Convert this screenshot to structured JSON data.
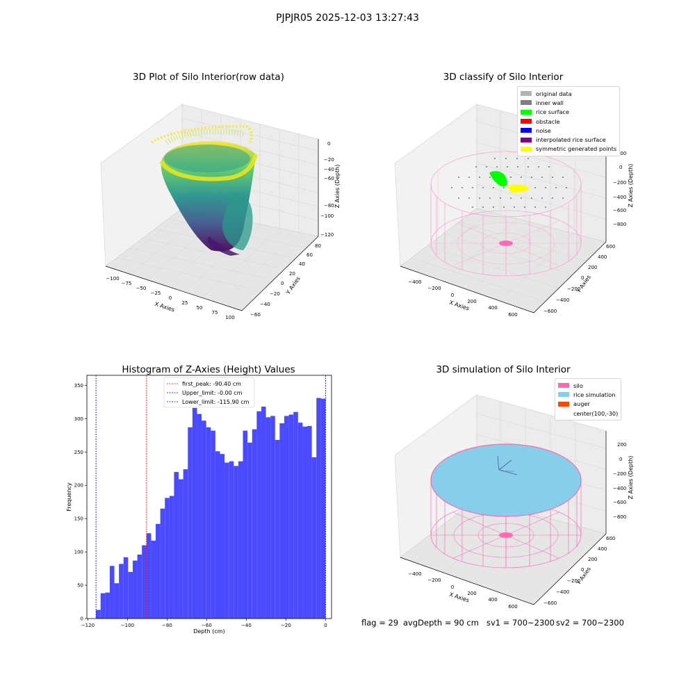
{
  "suptitle": "PJPJR05 2025-12-03 13:27:43",
  "panels": {
    "raw": {
      "title": "3D Plot of Silo Interior(row data)",
      "xlabel": "X Axies",
      "ylabel": "Y Axies",
      "zlabel": "Z Axies (Depth)",
      "xticks": [
        "−100",
        "−75",
        "−50",
        "−25",
        "0",
        "25",
        "50",
        "75",
        "100"
      ],
      "yticks": [
        "−60",
        "−40",
        "−20",
        "0",
        "20",
        "40",
        "60",
        "80"
      ],
      "zticks": [
        "0",
        "−20",
        "−40",
        "−60",
        "−80",
        "−100",
        "−120"
      ]
    },
    "classify": {
      "title": "3D classify of Silo Interior",
      "xlabel": "X Axies",
      "ylabel": "Y Axies",
      "zlabel": "Z Axies (Depth)",
      "xticks": [
        "−400",
        "−200",
        "0",
        "200",
        "400",
        "600"
      ],
      "yticks": [
        "−600",
        "−400",
        "−200",
        "0",
        "200",
        "400",
        "600"
      ],
      "zticks": [
        "200",
        "0",
        "−200",
        "−400",
        "−600",
        "−800"
      ],
      "legend": [
        {
          "label": "original data",
          "color": "#b3b3b3"
        },
        {
          "label": "inner wall",
          "color": "#808080"
        },
        {
          "label": "rice surface",
          "color": "#00ff00"
        },
        {
          "label": "obstacle",
          "color": "#ff0000"
        },
        {
          "label": "noise",
          "color": "#0000ff"
        },
        {
          "label": "interpolated rice surface",
          "color": "#800080"
        },
        {
          "label": "symmetric generated points",
          "color": "#ffff00"
        }
      ]
    },
    "simulation": {
      "title": "3D simulation of Silo Interior",
      "xlabel": "X Axies",
      "ylabel": "Y Axies",
      "zlabel": "Z Axies (Depth)",
      "xticks": [
        "−400",
        "−200",
        "0",
        "200",
        "400",
        "600"
      ],
      "yticks": [
        "−600",
        "−400",
        "−200",
        "0",
        "200",
        "400",
        "600"
      ],
      "zticks": [
        "200",
        "0",
        "−200",
        "−400",
        "−600",
        "−800"
      ],
      "legend": [
        {
          "label": "silo",
          "color": "#ff69b4"
        },
        {
          "label": "rice simulation",
          "color": "#87ceeb"
        },
        {
          "label": "auger",
          "color": "#ff4500"
        },
        {
          "label": "center(100,-30)",
          "color": ""
        }
      ]
    }
  },
  "footer": {
    "flag": "flag = 29",
    "avg": "avgDepth = 90 cm",
    "sv1": "sv1 = 700~2300",
    "sv2": "sv2 = 700~2300"
  },
  "chart_data": {
    "type": "bar",
    "title": "Histogram of Z-Axies (Height) Values",
    "xlabel": "Depth (cm)",
    "ylabel": "Frequency",
    "xlim": [
      -120.5,
      3
    ],
    "ylim": [
      0,
      365
    ],
    "xticks": [
      -120,
      -100,
      -80,
      -60,
      -40,
      -20,
      0
    ],
    "yticks": [
      0,
      50,
      100,
      150,
      200,
      250,
      300,
      350
    ],
    "bin_start": -115.9,
    "bin_width": 2.318,
    "color": "#4a4aff",
    "values": [
      13,
      38,
      39,
      79,
      53,
      82,
      92,
      70,
      87,
      96,
      110,
      128,
      117,
      142,
      165,
      181,
      184,
      220,
      209,
      224,
      287,
      316,
      307,
      297,
      287,
      282,
      251,
      247,
      234,
      236,
      229,
      236,
      282,
      264,
      284,
      311,
      318,
      302,
      304,
      268,
      293,
      304,
      306,
      310,
      294,
      288,
      289,
      242,
      331,
      330
    ],
    "lines": [
      {
        "label": "first_peak: -90.40 cm",
        "x": -90.4,
        "color": "#ff0000"
      },
      {
        "label": "Upper_limit: -0.00 cm",
        "x": -0.0,
        "color": "#0000cc"
      },
      {
        "label": "Lower_limit: -115.90 cm",
        "x": -115.9,
        "color": "#0000cc"
      }
    ]
  }
}
